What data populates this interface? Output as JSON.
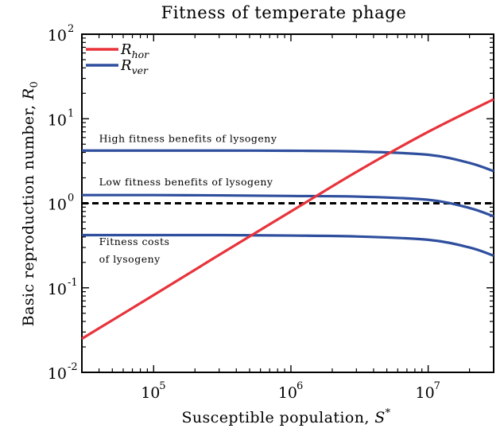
{
  "chart_data": {
    "type": "line",
    "title": "Fitness of temperate phage",
    "xlabel": "Susceptible population, S*",
    "ylabel": "Basic reproduction number, R0",
    "xscale": "log",
    "yscale": "log",
    "xlim": [
      30000,
      30000000
    ],
    "ylim": [
      0.01,
      100
    ],
    "xticks": [
      {
        "value": 100000,
        "base": "10",
        "exp": "5"
      },
      {
        "value": 1000000,
        "base": "10",
        "exp": "6"
      },
      {
        "value": 10000000,
        "base": "10",
        "exp": "7"
      }
    ],
    "yticks": [
      {
        "value": 0.01,
        "base": "10",
        "exp": "-2"
      },
      {
        "value": 0.1,
        "base": "10",
        "exp": "-1"
      },
      {
        "value": 1,
        "base": "10",
        "exp": "0"
      },
      {
        "value": 10,
        "base": "10",
        "exp": "1"
      },
      {
        "value": 100,
        "base": "10",
        "exp": "2"
      }
    ],
    "legend": {
      "position": "top-left",
      "entries": [
        {
          "base": "R",
          "sub": "hor",
          "color": "#e8333b"
        },
        {
          "base": "R",
          "sub": "ver",
          "color": "#2f4f9e"
        }
      ]
    },
    "threshold": {
      "y": 1,
      "style": "dashed",
      "color": "#000000"
    },
    "series": [
      {
        "name": "R_hor",
        "color": "#e8333b",
        "x": [
          30000,
          100000,
          300000,
          1000000,
          3000000,
          10000000,
          30000000
        ],
        "y": [
          0.025,
          0.082,
          0.245,
          0.8,
          2.35,
          7.0,
          17.0
        ]
      },
      {
        "name": "R_ver",
        "color": "#2f4f9e",
        "x": [
          30000,
          100000,
          300000,
          1000000,
          3000000,
          10000000,
          20000000,
          30000000
        ],
        "y": [
          4.2,
          4.2,
          4.2,
          4.18,
          4.1,
          3.75,
          3.0,
          2.4
        ]
      },
      {
        "name": "R_ver",
        "color": "#2f4f9e",
        "x": [
          30000,
          100000,
          300000,
          1000000,
          3000000,
          10000000,
          20000000,
          30000000
        ],
        "y": [
          1.25,
          1.25,
          1.24,
          1.22,
          1.2,
          1.1,
          0.88,
          0.7
        ]
      },
      {
        "name": "R_ver",
        "color": "#2f4f9e",
        "x": [
          30000,
          100000,
          300000,
          1000000,
          3000000,
          10000000,
          20000000,
          30000000
        ],
        "y": [
          0.42,
          0.42,
          0.42,
          0.415,
          0.405,
          0.37,
          0.3,
          0.24
        ]
      }
    ],
    "annotations": [
      {
        "text": "High fitness benefits of lysogeny",
        "x": 40000,
        "y": 5.3
      },
      {
        "text": "Low fitness benefits of lysogeny",
        "x": 40000,
        "y": 1.62
      },
      {
        "text": "Fitness costs",
        "x": 40000,
        "y": 0.32
      },
      {
        "text": "of lysogeny",
        "x": 40000,
        "y": 0.2
      }
    ]
  }
}
